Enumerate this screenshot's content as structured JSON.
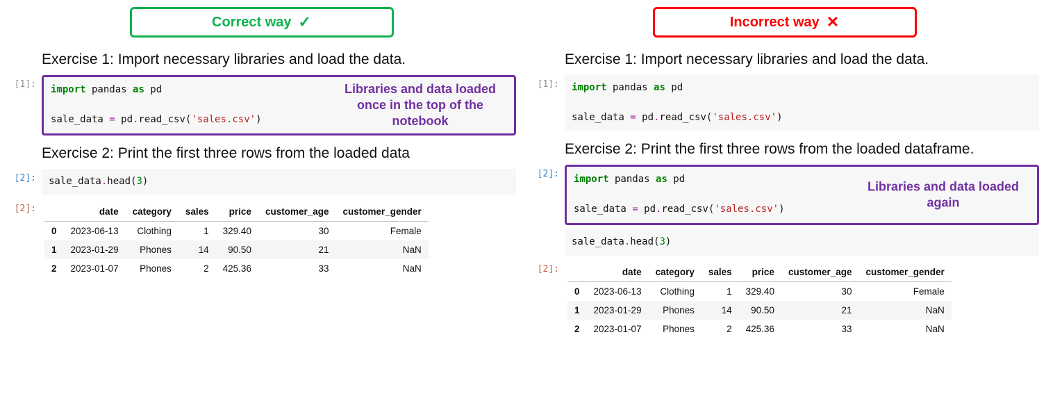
{
  "badges": {
    "correct": {
      "label": "Correct way",
      "mark": "✓",
      "border_color": "#0eb24e"
    },
    "incorrect": {
      "label": "Incorrect way",
      "mark": "✕",
      "border_color": "#fa0000"
    }
  },
  "exercises": {
    "ex1_title": "Exercise 1: Import necessary libraries and load the data.",
    "ex2_title_left": "Exercise 2: Print the first three rows from the loaded data",
    "ex2_title_right": "Exercise 2: Print the first three rows from the loaded dataframe."
  },
  "annotations": {
    "left": "Libraries and data loaded once in the top of the notebook",
    "right": "Libraries and data loaded again",
    "color": "#7030a0"
  },
  "prompts": {
    "in1": "[1]:",
    "in2": "[2]:",
    "out2": "[2]:"
  },
  "code": {
    "import_kw": "import",
    "as_kw": "as",
    "pandas": " pandas ",
    "pd": " pd",
    "blank": "",
    "assign_line_pre": "sale_data ",
    "eq": "=",
    "assign_line_mid": " pd",
    "dot": ".",
    "read_csv": "read_csv",
    "lparen": "(",
    "csv_str": "'sales.csv'",
    "rparen": ")",
    "head_pre": "sale_data",
    "head_fn": "head",
    "three": "3"
  },
  "table": {
    "columns": [
      "date",
      "category",
      "sales",
      "price",
      "customer_age",
      "customer_gender"
    ],
    "index": [
      "0",
      "1",
      "2"
    ],
    "rows": [
      [
        "2023-06-13",
        "Clothing",
        "1",
        "329.40",
        "30",
        "Female"
      ],
      [
        "2023-01-29",
        "Phones",
        "14",
        "90.50",
        "21",
        "NaN"
      ],
      [
        "2023-01-07",
        "Phones",
        "2",
        "425.36",
        "33",
        "NaN"
      ]
    ]
  },
  "style": {
    "code_bg": "#f7f7f7",
    "kw_color": "#008000",
    "str_color": "#ba2121",
    "func_color": "#0055aa",
    "prompt_in_gray": "#909090",
    "prompt_in_blue": "#307fc1",
    "prompt_out_red": "#bf5b3d"
  }
}
